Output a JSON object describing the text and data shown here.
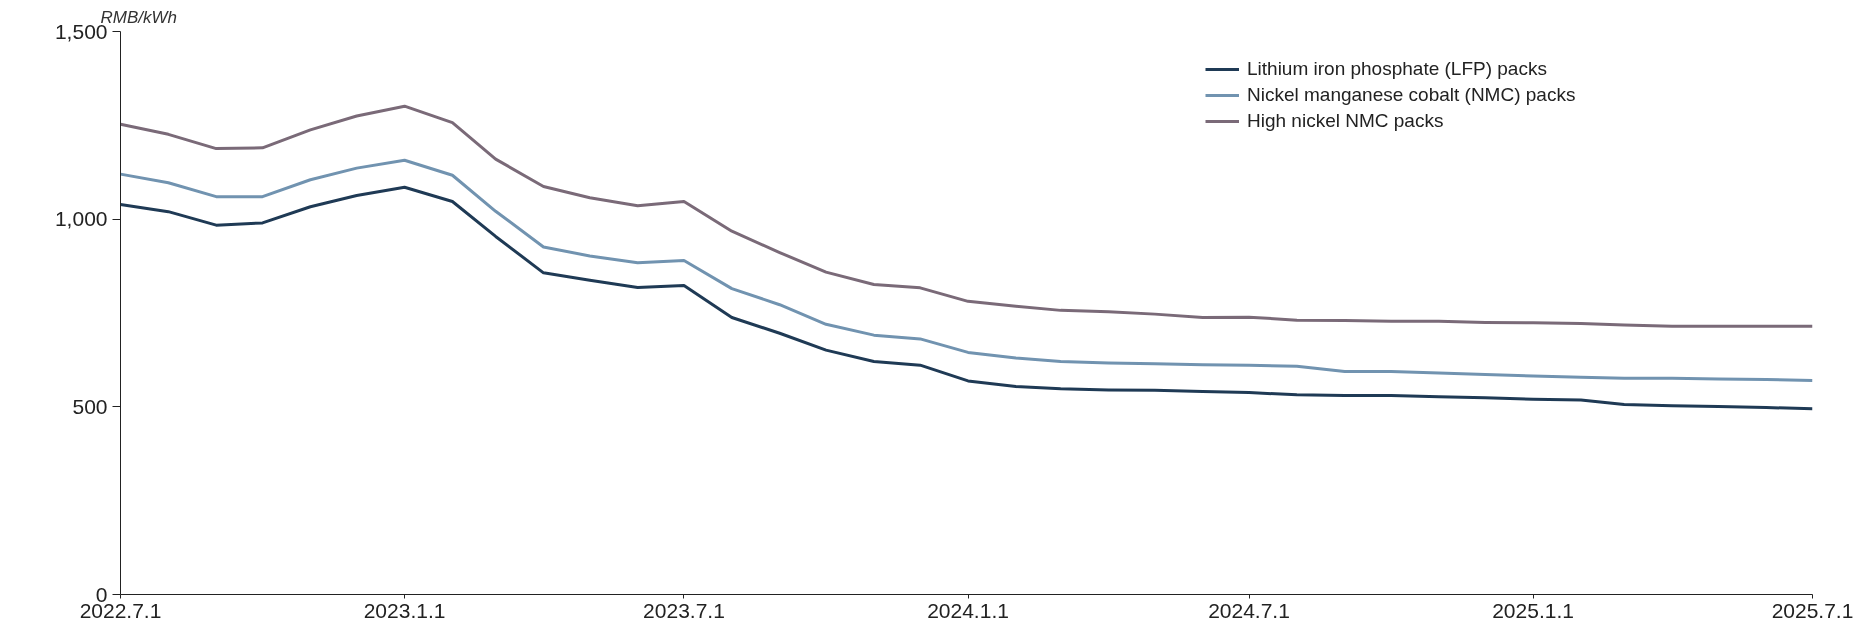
{
  "chart_data": {
    "type": "line",
    "ylabel": "RMB/kWh",
    "x": [
      "2022-07-01",
      "2022-08-01",
      "2022-09-01",
      "2022-10-01",
      "2022-11-01",
      "2022-12-01",
      "2023-01-01",
      "2023-02-01",
      "2023-03-01",
      "2023-04-01",
      "2023-05-01",
      "2023-06-01",
      "2023-07-01",
      "2023-08-01",
      "2023-09-01",
      "2023-10-01",
      "2023-11-01",
      "2023-12-01",
      "2024-01-01",
      "2024-02-01",
      "2024-03-01",
      "2024-04-01",
      "2024-05-01",
      "2024-06-01",
      "2024-07-01",
      "2024-08-01",
      "2024-09-01",
      "2024-10-01",
      "2024-11-01",
      "2024-12-01",
      "2025-01-01",
      "2025-02-01",
      "2025-03-01",
      "2025-04-01",
      "2025-05-01",
      "2025-06-01",
      "2025-07-01"
    ],
    "series": [
      {
        "name": "Lithium iron phosphate (LFP) packs",
        "color": "#1f3a55",
        "values": [
          1039,
          1020,
          984,
          990,
          1033,
          1063,
          1085,
          1047,
          954,
          857,
          837,
          818,
          823,
          738,
          696,
          651,
          621,
          611,
          569,
          554,
          548,
          545,
          544,
          541,
          538,
          532,
          530,
          530,
          527,
          524,
          520,
          518,
          506,
          503,
          501,
          498,
          495
        ]
      },
      {
        "name": "Nickel manganese cobalt (NMC) packs",
        "color": "#7193b0",
        "values": [
          1120,
          1097,
          1060,
          1060,
          1105,
          1136,
          1157,
          1117,
          1021,
          926,
          902,
          884,
          890,
          815,
          772,
          720,
          691,
          681,
          645,
          630,
          621,
          617,
          615,
          612,
          611,
          608,
          594,
          594,
          590,
          586,
          582,
          579,
          576,
          576,
          574,
          573,
          570
        ]
      },
      {
        "name": "High nickel NMC packs",
        "color": "#7a6a78",
        "values": [
          1253,
          1226,
          1188,
          1190,
          1238,
          1275,
          1301,
          1257,
          1160,
          1087,
          1057,
          1036,
          1047,
          968,
          911,
          859,
          826,
          817,
          781,
          768,
          757,
          753,
          747,
          738,
          739,
          731,
          730,
          728,
          728,
          725,
          724,
          722,
          718,
          715,
          715,
          715,
          715
        ]
      }
    ],
    "xlim": [
      "2022-07-01",
      "2025-07-01"
    ],
    "xticks": [
      {
        "value": "2022-07-01",
        "label": "2022.7.1"
      },
      {
        "value": "2023-01-01",
        "label": "2023.1.1"
      },
      {
        "value": "2023-07-01",
        "label": "2023.7.1"
      },
      {
        "value": "2024-01-01",
        "label": "2024.1.1"
      },
      {
        "value": "2024-07-01",
        "label": "2024.7.1"
      },
      {
        "value": "2025-01-01",
        "label": "2025.1.1"
      },
      {
        "value": "2025-07-01",
        "label": "2025.7.1"
      }
    ],
    "ylim": [
      0,
      1500
    ],
    "yticks": [
      0,
      500,
      {
        "value": 1000,
        "label": "1,000"
      },
      {
        "value": 1500,
        "label": "1,500"
      }
    ],
    "grid": false,
    "legend": "top right",
    "marker": "none",
    "line_style": "solid"
  }
}
